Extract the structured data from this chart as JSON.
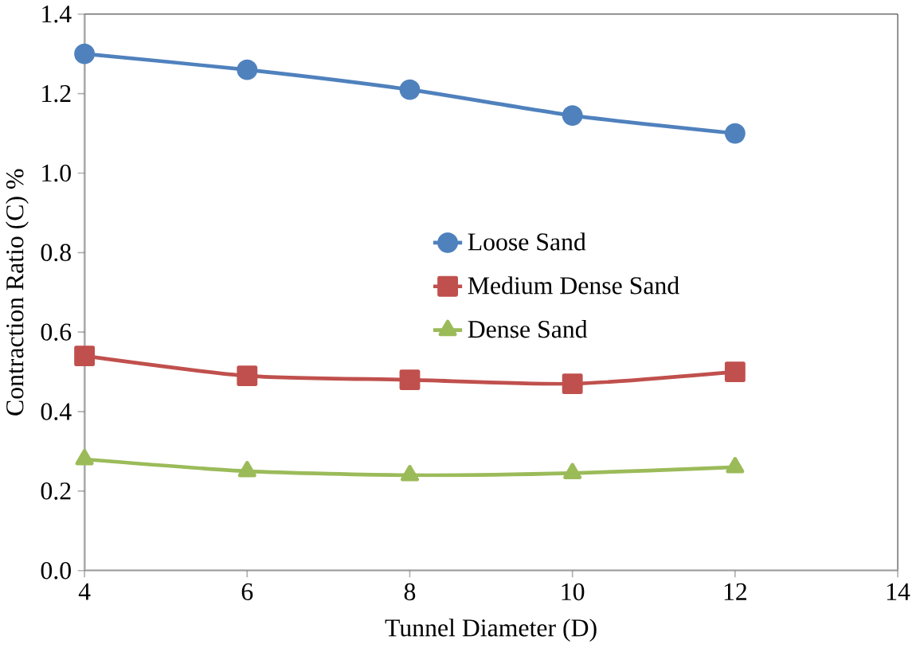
{
  "chart_data": {
    "type": "line",
    "xlabel": "Tunnel Diameter (D)",
    "ylabel": "Contraction Ratio (C) %",
    "x": [
      4,
      6,
      8,
      10,
      12
    ],
    "series": [
      {
        "name": "Loose Sand",
        "color": "#4f81bd",
        "marker": "circle",
        "values": [
          1.3,
          1.26,
          1.21,
          1.145,
          1.1
        ]
      },
      {
        "name": "Medium Dense Sand",
        "color": "#c0504d",
        "marker": "square",
        "values": [
          0.54,
          0.49,
          0.48,
          0.47,
          0.5
        ]
      },
      {
        "name": "Dense Sand",
        "color": "#9bbb59",
        "marker": "triangle",
        "values": [
          0.28,
          0.25,
          0.24,
          0.245,
          0.26
        ]
      }
    ],
    "xlim": [
      4,
      14
    ],
    "xticks": [
      4,
      6,
      8,
      10,
      12,
      14
    ],
    "ylim": [
      0,
      1.4
    ],
    "yticks": [
      {
        "value": 0,
        "label": "0.0"
      },
      0.2,
      0.4,
      0.6,
      0.8,
      {
        "value": 1,
        "label": "1.0"
      },
      1.2,
      1.4
    ],
    "grid": false,
    "legend": "right",
    "line_style": "solid"
  }
}
